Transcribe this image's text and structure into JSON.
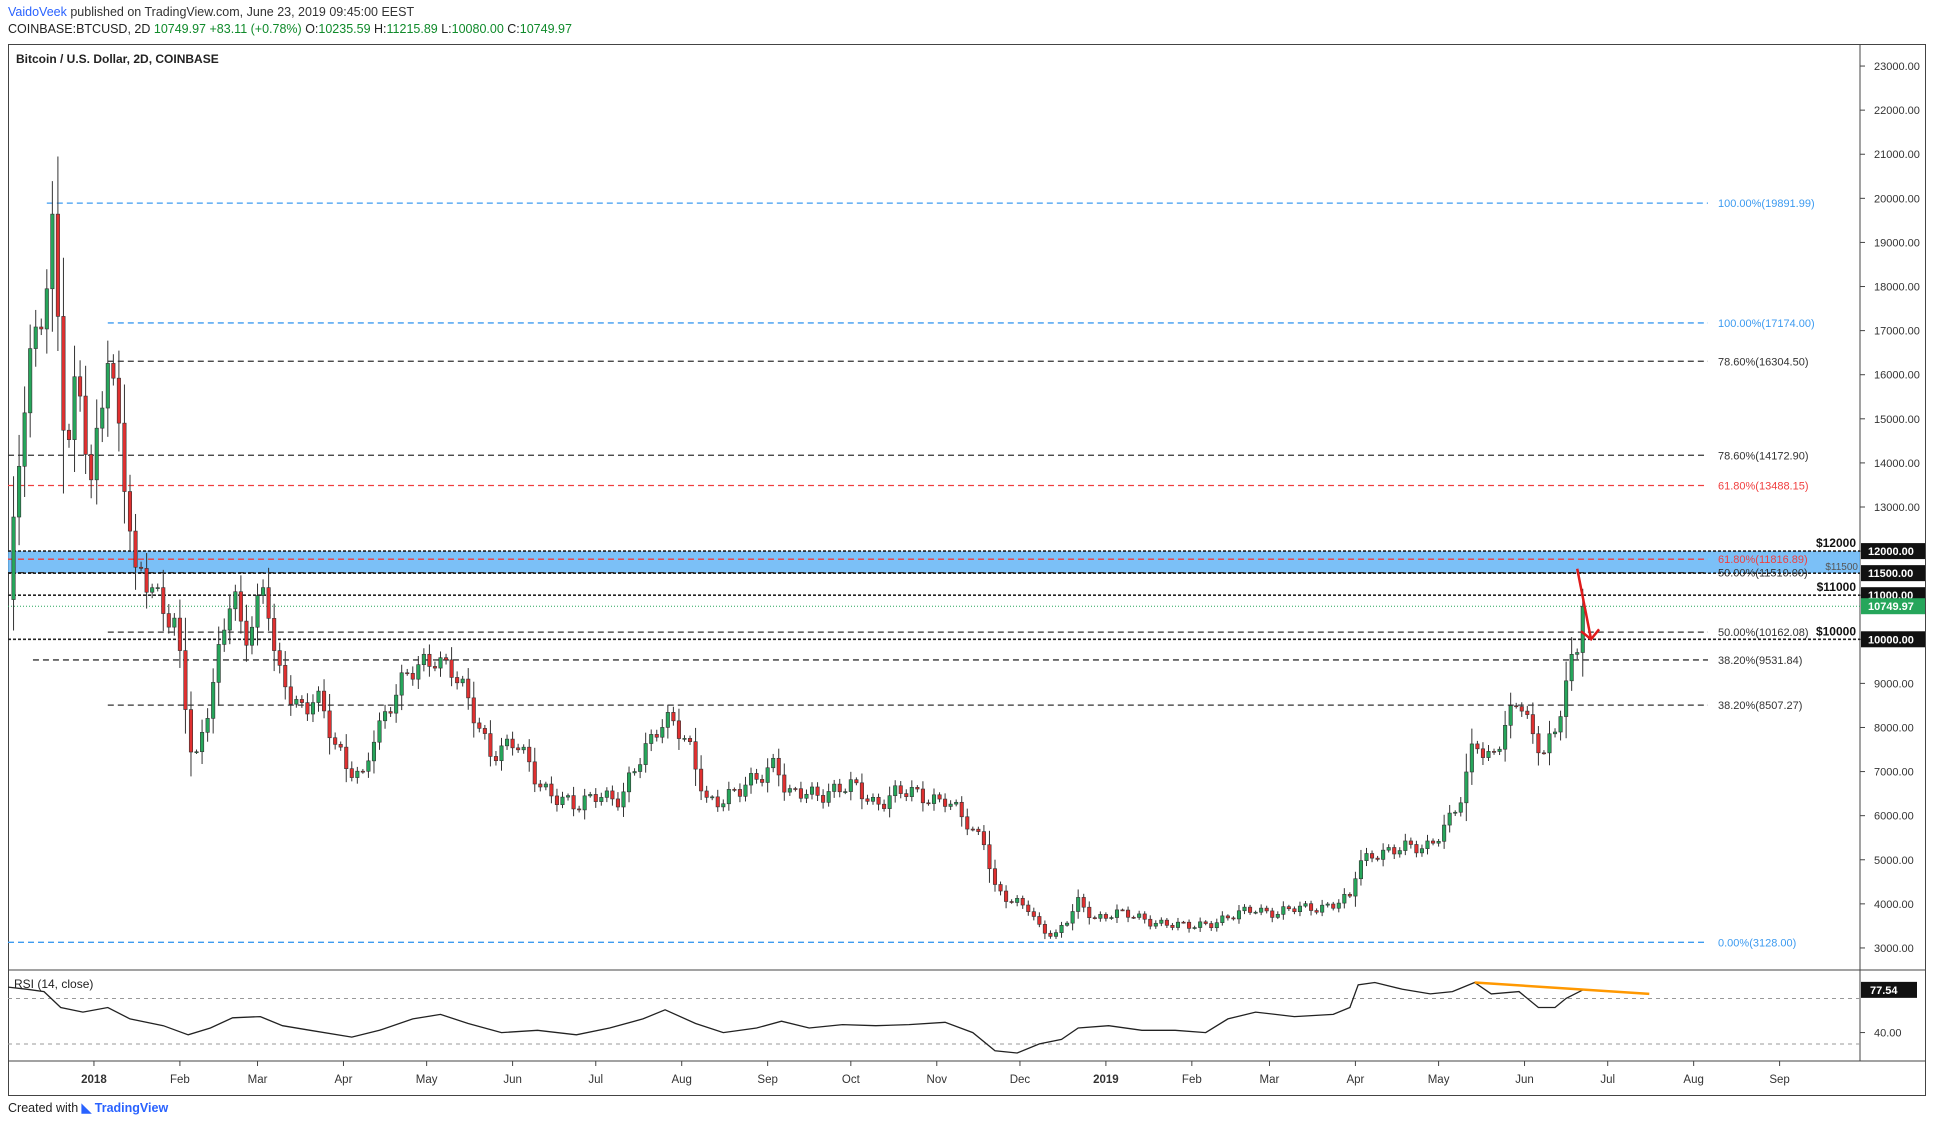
{
  "header": {
    "author": "VaidoVeek",
    "published_text": "published on TradingView.com, June 23, 2019 09:45:00 EEST",
    "symbol": "COINBASE:BTCUSD, 2D",
    "last": "10749.97",
    "change": "+83.11 (+0.78%)",
    "o_label": "O:",
    "o": "10235.59",
    "h_label": "H:",
    "h": "11215.89",
    "l_label": "L:",
    "l": "10080.00",
    "c_label": "C:",
    "c": "10749.97"
  },
  "chart_title": "Bitcoin / U.S. Dollar, 2D, COINBASE",
  "footer": {
    "created_with": "Created with",
    "brand": "TradingView"
  },
  "colors": {
    "up": "#26a65b",
    "down": "#e03030",
    "zone": "#64b5f6",
    "fib_blue": "#3d9bf0",
    "fib_red": "#f04040",
    "rsi_trend": "#ff9800",
    "arrow": "#e01b1b"
  },
  "chart_data": {
    "type": "candlestick",
    "title": "Bitcoin / U.S. Dollar, 2D, COINBASE",
    "y_axis": {
      "min": 2500,
      "max": 23500,
      "ticks": [
        3000,
        4000,
        5000,
        6000,
        7000,
        8000,
        9000,
        10000,
        11000,
        12000,
        13000,
        14000,
        15000,
        16000,
        17000,
        18000,
        19000,
        20000,
        21000,
        22000,
        23000
      ],
      "tick_labels": [
        "3000.00",
        "4000.00",
        "5000.00",
        "6000.00",
        "7000.00",
        "8000.00",
        "9000.00",
        "10000.00",
        "11000.00",
        "12000.00",
        "13000.00",
        "14000.00",
        "15000.00",
        "16000.00",
        "17000.00",
        "18000.00",
        "19000.00",
        "20000.00",
        "21000.00",
        "22000.00",
        "23000.00"
      ]
    },
    "x_axis": {
      "start": "2017-12-01",
      "end": "2019-09-30",
      "ticks": [
        {
          "label": "2018",
          "date": "2018-01-01",
          "bold": true
        },
        {
          "label": "Feb",
          "date": "2018-02-01"
        },
        {
          "label": "Mar",
          "date": "2018-03-01"
        },
        {
          "label": "Apr",
          "date": "2018-04-01"
        },
        {
          "label": "May",
          "date": "2018-05-01"
        },
        {
          "label": "Jun",
          "date": "2018-06-01"
        },
        {
          "label": "Jul",
          "date": "2018-07-01"
        },
        {
          "label": "Aug",
          "date": "2018-08-01"
        },
        {
          "label": "Sep",
          "date": "2018-09-01"
        },
        {
          "label": "Oct",
          "date": "2018-10-01"
        },
        {
          "label": "Nov",
          "date": "2018-11-01"
        },
        {
          "label": "Dec",
          "date": "2018-12-01"
        },
        {
          "label": "2019",
          "date": "2019-01-01",
          "bold": true
        },
        {
          "label": "Feb",
          "date": "2019-02-01"
        },
        {
          "label": "Mar",
          "date": "2019-03-01"
        },
        {
          "label": "Apr",
          "date": "2019-04-01"
        },
        {
          "label": "May",
          "date": "2019-05-01"
        },
        {
          "label": "Jun",
          "date": "2019-06-01"
        },
        {
          "label": "Jul",
          "date": "2019-07-01"
        },
        {
          "label": "Aug",
          "date": "2019-08-01"
        },
        {
          "label": "Sep",
          "date": "2019-09-01"
        }
      ]
    },
    "price_anchors": [
      [
        "2017-12-01",
        10900
      ],
      [
        "2017-12-08",
        16000
      ],
      [
        "2017-12-12",
        17000
      ],
      [
        "2017-12-17",
        19500
      ],
      [
        "2017-12-22",
        14000
      ],
      [
        "2017-12-26",
        15800
      ],
      [
        "2017-12-31",
        13500
      ],
      [
        "2018-01-06",
        16800
      ],
      [
        "2018-01-10",
        14700
      ],
      [
        "2018-01-16",
        11200
      ],
      [
        "2018-01-18",
        11500
      ],
      [
        "2018-01-25",
        11000
      ],
      [
        "2018-01-30",
        10300
      ],
      [
        "2018-02-01",
        9500
      ],
      [
        "2018-02-06",
        6900
      ],
      [
        "2018-02-11",
        8500
      ],
      [
        "2018-02-16",
        10100
      ],
      [
        "2018-02-20",
        11200
      ],
      [
        "2018-02-24",
        9700
      ],
      [
        "2018-03-04",
        11400
      ],
      [
        "2018-03-08",
        9400
      ],
      [
        "2018-03-14",
        8500
      ],
      [
        "2018-03-18",
        8200
      ],
      [
        "2018-03-22",
        8900
      ],
      [
        "2018-03-28",
        7900
      ],
      [
        "2018-04-02",
        7000
      ],
      [
        "2018-04-08",
        6800
      ],
      [
        "2018-04-12",
        7900
      ],
      [
        "2018-04-20",
        8800
      ],
      [
        "2018-04-26",
        9200
      ],
      [
        "2018-05-04",
        9700
      ],
      [
        "2018-05-10",
        9300
      ],
      [
        "2018-05-16",
        8500
      ],
      [
        "2018-05-24",
        7500
      ],
      [
        "2018-06-02",
        7600
      ],
      [
        "2018-06-10",
        6800
      ],
      [
        "2018-06-16",
        6500
      ],
      [
        "2018-06-24",
        6100
      ],
      [
        "2018-07-02",
        6600
      ],
      [
        "2018-07-10",
        6300
      ],
      [
        "2018-07-18",
        7400
      ],
      [
        "2018-07-24",
        8200
      ],
      [
        "2018-07-28",
        8200
      ],
      [
        "2018-08-04",
        7400
      ],
      [
        "2018-08-10",
        6400
      ],
      [
        "2018-08-16",
        6400
      ],
      [
        "2018-08-22",
        6500
      ],
      [
        "2018-08-30",
        7000
      ],
      [
        "2018-09-04",
        7300
      ],
      [
        "2018-09-08",
        6400
      ],
      [
        "2018-09-16",
        6500
      ],
      [
        "2018-09-24",
        6600
      ],
      [
        "2018-10-02",
        6600
      ],
      [
        "2018-10-10",
        6300
      ],
      [
        "2018-10-16",
        6500
      ],
      [
        "2018-10-26",
        6450
      ],
      [
        "2018-11-04",
        6400
      ],
      [
        "2018-11-14",
        5600
      ],
      [
        "2018-11-18",
        5500
      ],
      [
        "2018-11-22",
        4400
      ],
      [
        "2018-11-28",
        4000
      ],
      [
        "2018-12-04",
        3900
      ],
      [
        "2018-12-08",
        3500
      ],
      [
        "2018-12-14",
        3300
      ],
      [
        "2018-12-18",
        3600
      ],
      [
        "2018-12-22",
        4000
      ],
      [
        "2018-12-28",
        3700
      ],
      [
        "2019-01-04",
        3800
      ],
      [
        "2019-01-10",
        3700
      ],
      [
        "2019-01-20",
        3600
      ],
      [
        "2019-01-30",
        3450
      ],
      [
        "2019-02-08",
        3600
      ],
      [
        "2019-02-16",
        3700
      ],
      [
        "2019-02-24",
        3900
      ],
      [
        "2019-03-04",
        3800
      ],
      [
        "2019-03-14",
        3900
      ],
      [
        "2019-03-24",
        4000
      ],
      [
        "2019-03-30",
        4100
      ],
      [
        "2019-04-02",
        4900
      ],
      [
        "2019-04-08",
        5200
      ],
      [
        "2019-04-16",
        5200
      ],
      [
        "2019-04-26",
        5300
      ],
      [
        "2019-05-04",
        5800
      ],
      [
        "2019-05-10",
        6400
      ],
      [
        "2019-05-14",
        7900
      ],
      [
        "2019-05-18",
        7300
      ],
      [
        "2019-05-24",
        7800
      ],
      [
        "2019-05-30",
        8600
      ],
      [
        "2019-06-04",
        7800
      ],
      [
        "2019-06-08",
        7600
      ],
      [
        "2019-06-12",
        7900
      ],
      [
        "2019-06-16",
        8900
      ],
      [
        "2019-06-18",
        9300
      ],
      [
        "2019-06-20",
        9700
      ],
      [
        "2019-06-22",
        10749.97
      ]
    ],
    "levels": [
      {
        "price": 19891.99,
        "label": "100.00%(19891.99)",
        "style": "fib_blue",
        "from": "2017-12-15"
      },
      {
        "price": 17174.0,
        "label": "100.00%(17174.00)",
        "style": "fib_blue",
        "from": "2018-01-06"
      },
      {
        "price": 16304.5,
        "label": "78.60%(16304.50)",
        "style": "fib_black",
        "from": "2018-01-06"
      },
      {
        "price": 14172.9,
        "label": "78.60%(14172.90)",
        "style": "fib_black",
        "from": "2017-12-01"
      },
      {
        "price": 13488.15,
        "label": "61.80%(13488.15)",
        "style": "fib_red",
        "from": "2017-12-01"
      },
      {
        "price": 11816.89,
        "label": "61.80%(11816.89)",
        "style": "fib_red",
        "from": "2017-12-01"
      },
      {
        "price": 11510.0,
        "label": "50.00%(11510.00)",
        "style": "fib_black",
        "from": "2017-12-01"
      },
      {
        "price": 10162.08,
        "label": "50.00%(10162.08)",
        "style": "fib_black",
        "from": "2018-01-06"
      },
      {
        "price": 9531.84,
        "label": "38.20%(9531.84)",
        "style": "fib_black",
        "from": "2017-12-10"
      },
      {
        "price": 8507.27,
        "label": "38.20%(8507.27)",
        "style": "fib_black",
        "from": "2018-01-06"
      },
      {
        "price": 3128.0,
        "label": "0.00%(3128.00)",
        "style": "fib_blue",
        "from": "2017-12-01"
      }
    ],
    "resistance_zone": {
      "from_price": 11500,
      "to_price": 12000
    },
    "annotations": [
      {
        "price": 12000,
        "text": "$12000"
      },
      {
        "price": 11500,
        "text": "$11500"
      },
      {
        "price": 11000,
        "text": "$11000"
      },
      {
        "price": 10000,
        "text": "$10000"
      }
    ],
    "price_tags": [
      {
        "price": 12000,
        "text": "12000.00",
        "bg": "#111111"
      },
      {
        "price": 11500,
        "text": "11500.00",
        "bg": "#111111"
      },
      {
        "price": 11000,
        "text": "11000.00",
        "bg": "#111111"
      },
      {
        "price": 10749.97,
        "text": "10749.97",
        "bg": "#26a65b"
      },
      {
        "price": 10000,
        "text": "10000.00",
        "bg": "#111111"
      }
    ],
    "arrow": {
      "from": [
        "2019-06-20",
        11600
      ],
      "to": [
        "2019-06-25",
        10000
      ]
    },
    "rsi": {
      "label": "RSI (14, close)",
      "current": "77.54",
      "tick_label": "40.00",
      "levels": [
        70,
        30
      ],
      "min": 15,
      "max": 95,
      "anchors": [
        [
          "2017-12-01",
          80
        ],
        [
          "2017-12-08",
          78
        ],
        [
          "2017-12-14",
          76
        ],
        [
          "2017-12-20",
          62
        ],
        [
          "2017-12-28",
          58
        ],
        [
          "2018-01-06",
          62
        ],
        [
          "2018-01-14",
          52
        ],
        [
          "2018-01-26",
          46
        ],
        [
          "2018-02-04",
          38
        ],
        [
          "2018-02-12",
          44
        ],
        [
          "2018-02-20",
          53
        ],
        [
          "2018-03-02",
          54
        ],
        [
          "2018-03-10",
          46
        ],
        [
          "2018-03-20",
          42
        ],
        [
          "2018-04-04",
          36
        ],
        [
          "2018-04-14",
          42
        ],
        [
          "2018-04-26",
          52
        ],
        [
          "2018-05-06",
          56
        ],
        [
          "2018-05-16",
          48
        ],
        [
          "2018-05-28",
          40
        ],
        [
          "2018-06-10",
          42
        ],
        [
          "2018-06-24",
          38
        ],
        [
          "2018-07-06",
          44
        ],
        [
          "2018-07-18",
          52
        ],
        [
          "2018-07-26",
          60
        ],
        [
          "2018-08-06",
          48
        ],
        [
          "2018-08-16",
          40
        ],
        [
          "2018-08-28",
          44
        ],
        [
          "2018-09-06",
          50
        ],
        [
          "2018-09-16",
          44
        ],
        [
          "2018-09-28",
          47
        ],
        [
          "2018-10-10",
          46
        ],
        [
          "2018-10-22",
          47
        ],
        [
          "2018-11-04",
          49
        ],
        [
          "2018-11-14",
          40
        ],
        [
          "2018-11-22",
          24
        ],
        [
          "2018-11-30",
          22
        ],
        [
          "2018-12-08",
          30
        ],
        [
          "2018-12-16",
          34
        ],
        [
          "2018-12-22",
          44
        ],
        [
          "2019-01-02",
          46
        ],
        [
          "2019-01-14",
          42
        ],
        [
          "2019-01-26",
          42
        ],
        [
          "2019-02-06",
          40
        ],
        [
          "2019-02-14",
          52
        ],
        [
          "2019-02-24",
          58
        ],
        [
          "2019-03-10",
          54
        ],
        [
          "2019-03-24",
          56
        ],
        [
          "2019-03-30",
          62
        ],
        [
          "2019-04-02",
          82
        ],
        [
          "2019-04-08",
          84
        ],
        [
          "2019-04-18",
          78
        ],
        [
          "2019-04-28",
          74
        ],
        [
          "2019-05-06",
          76
        ],
        [
          "2019-05-14",
          84
        ],
        [
          "2019-05-20",
          74
        ],
        [
          "2019-05-30",
          76
        ],
        [
          "2019-06-06",
          62
        ],
        [
          "2019-06-12",
          62
        ],
        [
          "2019-06-16",
          70
        ],
        [
          "2019-06-22",
          77.54
        ]
      ],
      "trendline": {
        "from": [
          "2019-05-14",
          84
        ],
        "to": [
          "2019-07-16",
          74
        ]
      }
    }
  }
}
